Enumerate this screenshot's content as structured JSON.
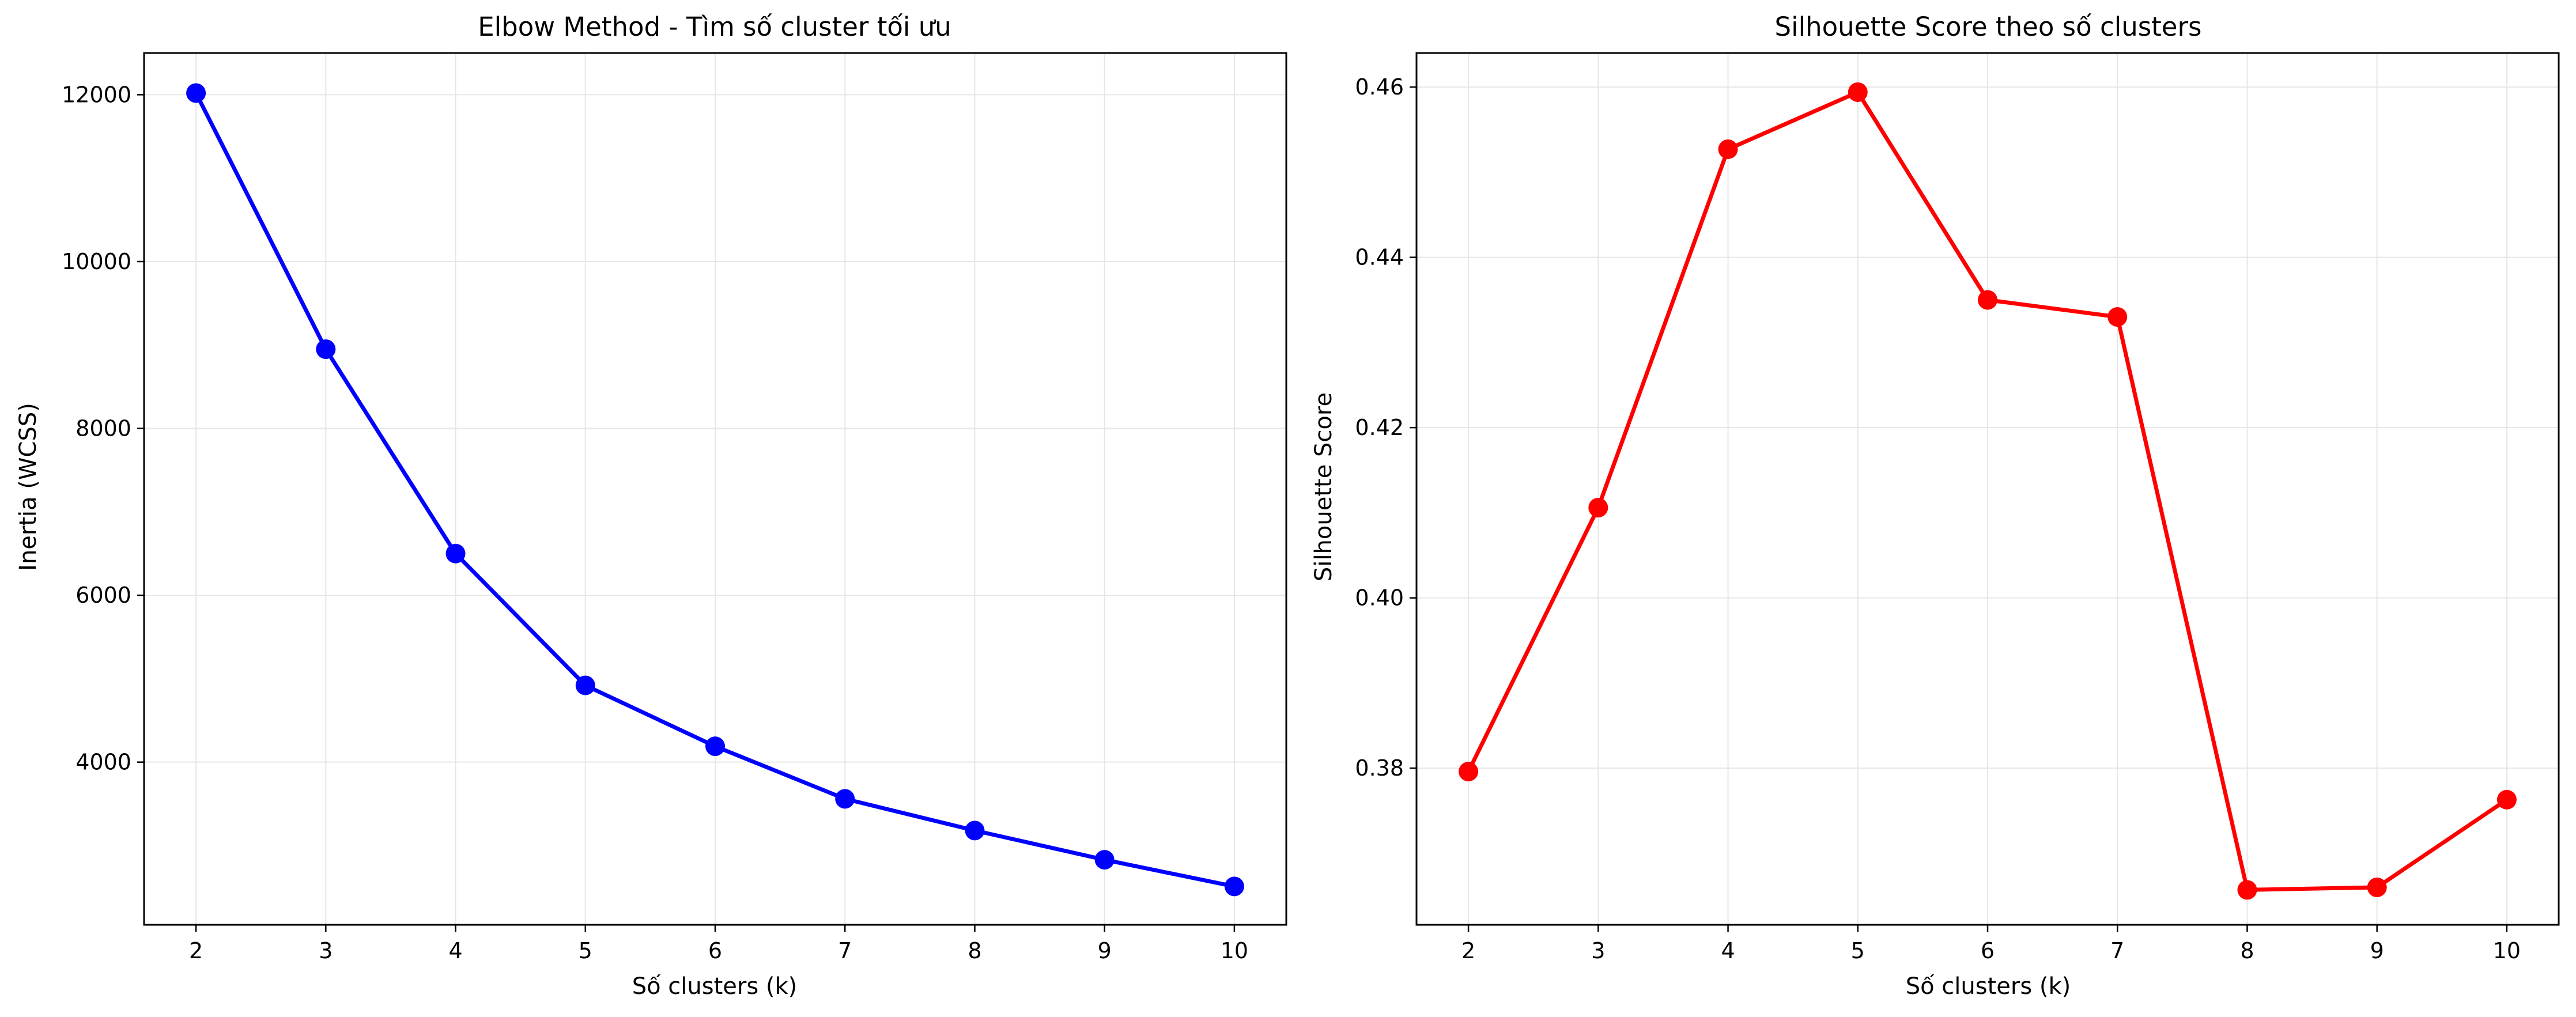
{
  "chart_data": [
    {
      "type": "line",
      "title": "Elbow Method - Tìm số cluster tối ưu",
      "xlabel": "Số clusters (k)",
      "ylabel": "Inertia (WCSS)",
      "x": [
        2,
        3,
        4,
        5,
        6,
        7,
        8,
        9,
        10
      ],
      "xticks": [
        "2",
        "3",
        "4",
        "5",
        "6",
        "7",
        "8",
        "9",
        "10"
      ],
      "xlim": [
        1.6,
        10.4
      ],
      "ylim": [
        2050,
        12500
      ],
      "yticks": [
        4000,
        6000,
        8000,
        10000,
        12000
      ],
      "ytick_labels": [
        "4000",
        "6000",
        "8000",
        "10000",
        "12000"
      ],
      "grid": true,
      "series": [
        {
          "color": "#0000ff",
          "marker": "circle",
          "values": [
            12020,
            8950,
            6500,
            4920,
            4190,
            3560,
            3180,
            2830,
            2510
          ]
        }
      ]
    },
    {
      "type": "line",
      "title": "Silhouette Score theo số clusters",
      "xlabel": "Số clusters (k)",
      "ylabel": "Silhouette Score",
      "x": [
        2,
        3,
        4,
        5,
        6,
        7,
        8,
        9,
        10
      ],
      "xticks": [
        "2",
        "3",
        "4",
        "5",
        "6",
        "7",
        "8",
        "9",
        "10"
      ],
      "xlim": [
        1.6,
        10.4
      ],
      "ylim": [
        0.3616,
        0.464
      ],
      "yticks": [
        0.38,
        0.4,
        0.42,
        0.44,
        0.46
      ],
      "ytick_labels": [
        "0.38",
        "0.40",
        "0.42",
        "0.44",
        "0.46"
      ],
      "grid": true,
      "series": [
        {
          "color": "#ff0000",
          "marker": "circle",
          "values": [
            0.3796,
            0.4106,
            0.4527,
            0.4594,
            0.435,
            0.433,
            0.3657,
            0.366,
            0.3763
          ]
        }
      ]
    }
  ]
}
